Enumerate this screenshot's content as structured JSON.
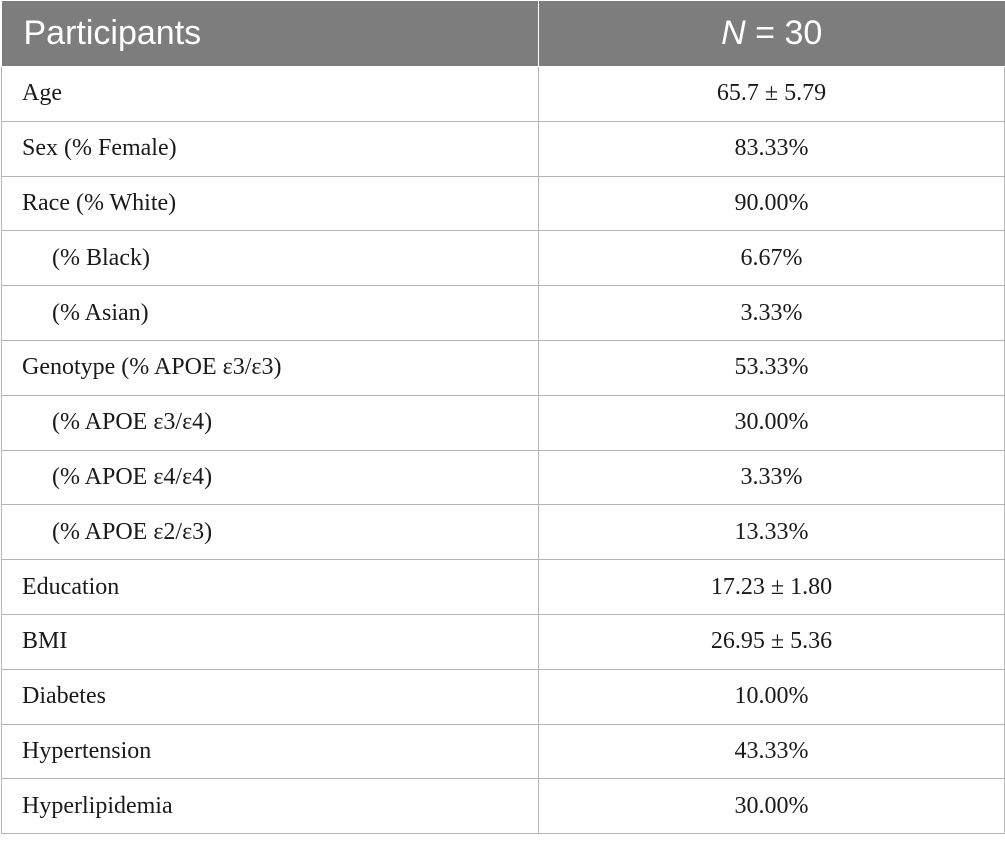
{
  "header": {
    "col1": "Participants",
    "col2_italic": "N",
    "col2_rest": " = 30"
  },
  "rows": [
    {
      "label": "Age",
      "value": "65.7 ± 5.79"
    },
    {
      "label": "Sex (% Female)",
      "value": "83.33%"
    },
    {
      "label": "Race (% White)",
      "value": "90.00%"
    },
    {
      "label": "(% Black)",
      "value": "6.67%"
    },
    {
      "label": "(% Asian)",
      "value": "3.33%"
    },
    {
      "label": "Genotype (% APOE ε3/ε3)",
      "value": "53.33%"
    },
    {
      "label": "(% APOE ε3/ε4)",
      "value": "30.00%"
    },
    {
      "label": "(% APOE ε4/ε4)",
      "value": "3.33%"
    },
    {
      "label": "(% APOE ε2/ε3)",
      "value": "13.33%"
    },
    {
      "label": "Education",
      "value": "17.23 ± 1.80"
    },
    {
      "label": "BMI",
      "value": "26.95 ± 5.36"
    },
    {
      "label": "Diabetes",
      "value": "10.00%"
    },
    {
      "label": "Hypertension",
      "value": "43.33%"
    },
    {
      "label": "Hyperlipidemia",
      "value": "30.00%"
    }
  ]
}
